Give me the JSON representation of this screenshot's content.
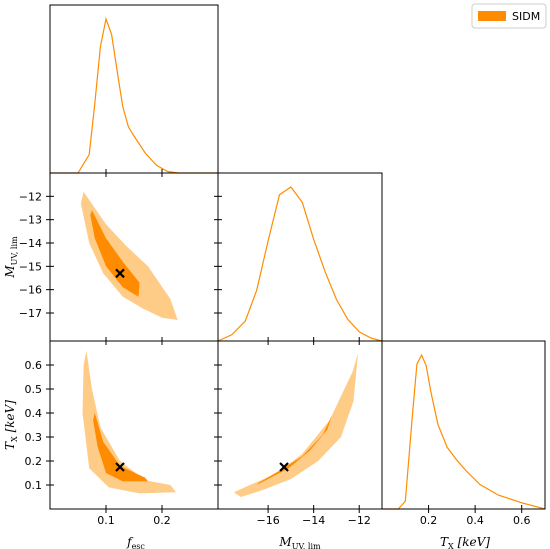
{
  "chart_data": {
    "type": "corner",
    "series": [
      {
        "name": "SIDM",
        "color": "#ff8c00",
        "fill_inner": "#ff8c00",
        "fill_outer": "#ffcc88"
      }
    ],
    "legend": {
      "label": "SIDM",
      "placement": "top-right"
    },
    "parameters": [
      {
        "id": "fesc",
        "range": [
          0.0,
          0.3
        ],
        "ticks": [
          0.1,
          0.2
        ],
        "label_main": "f",
        "label_sub": "esc",
        "label_unit": ""
      },
      {
        "id": "muv",
        "range": [
          -18.2,
          -11.0
        ],
        "ticks": [
          -16,
          -14,
          -12
        ],
        "yticks": [
          -17,
          -16,
          -15,
          -14,
          -13,
          -12
        ],
        "label_main": "M",
        "label_sub": "UV, lim",
        "label_unit": ""
      },
      {
        "id": "tx",
        "range": [
          0.0,
          0.7
        ],
        "ticks": [
          0.2,
          0.4,
          0.6
        ],
        "yticks": [
          0.1,
          0.2,
          0.3,
          0.4,
          0.5,
          0.6
        ],
        "label_main": "T",
        "label_sub": "X",
        "label_unit": " [keV]"
      }
    ],
    "true_values": {
      "fesc": 0.125,
      "muv": -15.3,
      "tx": 0.175
    },
    "marginals": {
      "fesc": {
        "x": [
          0.0,
          0.05,
          0.07,
          0.08,
          0.09,
          0.1,
          0.11,
          0.12,
          0.13,
          0.14,
          0.15,
          0.17,
          0.19,
          0.21,
          0.23,
          0.25,
          0.3
        ],
        "y": [
          0.0,
          0.0,
          0.12,
          0.45,
          0.82,
          1.0,
          0.9,
          0.66,
          0.43,
          0.3,
          0.24,
          0.13,
          0.05,
          0.01,
          0.0,
          0.0,
          0.0
        ]
      },
      "muv": {
        "x": [
          -18.2,
          -17.6,
          -17.0,
          -16.5,
          -16.0,
          -15.5,
          -15.0,
          -14.5,
          -14.0,
          -13.5,
          -13.0,
          -12.5,
          -12.0,
          -11.5,
          -11.0
        ],
        "y": [
          0.0,
          0.04,
          0.13,
          0.33,
          0.65,
          0.95,
          1.0,
          0.9,
          0.66,
          0.45,
          0.27,
          0.14,
          0.06,
          0.02,
          0.0
        ]
      },
      "tx": {
        "x": [
          0.0,
          0.07,
          0.1,
          0.13,
          0.15,
          0.17,
          0.19,
          0.21,
          0.24,
          0.28,
          0.32,
          0.36,
          0.42,
          0.5,
          0.6,
          0.7
        ],
        "y": [
          0.0,
          0.0,
          0.05,
          0.6,
          0.94,
          1.0,
          0.93,
          0.76,
          0.55,
          0.4,
          0.32,
          0.25,
          0.16,
          0.09,
          0.04,
          0.0
        ]
      }
    },
    "contours": {
      "muv_vs_fesc": {
        "outer": [
          [
            0.06,
            -11.8
          ],
          [
            0.1,
            -13.2
          ],
          [
            0.135,
            -14.1
          ],
          [
            0.175,
            -15.0
          ],
          [
            0.215,
            -16.4
          ],
          [
            0.228,
            -17.3
          ],
          [
            0.2,
            -17.2
          ],
          [
            0.165,
            -16.8
          ],
          [
            0.13,
            -16.3
          ],
          [
            0.095,
            -15.3
          ],
          [
            0.07,
            -14.0
          ],
          [
            0.055,
            -12.3
          ]
        ],
        "inner": [
          [
            0.075,
            -12.6
          ],
          [
            0.1,
            -13.8
          ],
          [
            0.13,
            -14.8
          ],
          [
            0.16,
            -15.7
          ],
          [
            0.158,
            -16.3
          ],
          [
            0.13,
            -15.9
          ],
          [
            0.1,
            -15.0
          ],
          [
            0.08,
            -13.8
          ],
          [
            0.072,
            -12.8
          ]
        ]
      },
      "tx_vs_fesc": {
        "outer": [
          [
            0.065,
            0.66
          ],
          [
            0.075,
            0.5
          ],
          [
            0.09,
            0.34
          ],
          [
            0.125,
            0.2
          ],
          [
            0.17,
            0.12
          ],
          [
            0.215,
            0.1
          ],
          [
            0.225,
            0.07
          ],
          [
            0.16,
            0.065
          ],
          [
            0.105,
            0.09
          ],
          [
            0.07,
            0.17
          ],
          [
            0.058,
            0.4
          ],
          [
            0.06,
            0.6
          ]
        ],
        "inner": [
          [
            0.08,
            0.4
          ],
          [
            0.095,
            0.28
          ],
          [
            0.125,
            0.18
          ],
          [
            0.17,
            0.13
          ],
          [
            0.175,
            0.115
          ],
          [
            0.13,
            0.115
          ],
          [
            0.1,
            0.15
          ],
          [
            0.085,
            0.26
          ],
          [
            0.077,
            0.37
          ]
        ]
      },
      "tx_vs_muv": {
        "outer": [
          [
            -17.5,
            0.07
          ],
          [
            -16.8,
            0.1
          ],
          [
            -15.6,
            0.15
          ],
          [
            -14.5,
            0.23
          ],
          [
            -13.3,
            0.37
          ],
          [
            -12.3,
            0.57
          ],
          [
            -12.05,
            0.65
          ],
          [
            -12.25,
            0.45
          ],
          [
            -12.8,
            0.3
          ],
          [
            -13.8,
            0.2
          ],
          [
            -15.0,
            0.125
          ],
          [
            -16.2,
            0.08
          ],
          [
            -17.2,
            0.05
          ]
        ],
        "inner": [
          [
            -16.4,
            0.11
          ],
          [
            -15.5,
            0.16
          ],
          [
            -14.5,
            0.22
          ],
          [
            -13.6,
            0.31
          ],
          [
            -13.2,
            0.39
          ],
          [
            -13.4,
            0.33
          ],
          [
            -14.2,
            0.24
          ],
          [
            -15.1,
            0.17
          ],
          [
            -16.1,
            0.12
          ],
          [
            -16.5,
            0.1
          ]
        ]
      }
    }
  }
}
